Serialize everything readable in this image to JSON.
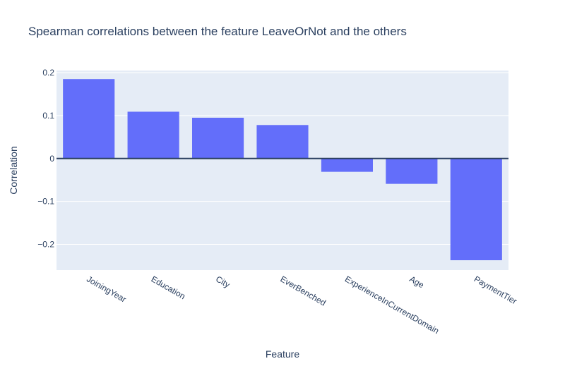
{
  "chart_data": {
    "type": "bar",
    "title": "Spearman correlations between the feature LeaveOrNot and the others",
    "xlabel": "Feature",
    "ylabel": "Correlation",
    "categories": [
      "JoiningYear",
      "Education",
      "City",
      "EverBenched",
      "ExperienceInCurrentDomain",
      "Age",
      "PaymentTier"
    ],
    "values": [
      0.185,
      0.109,
      0.095,
      0.078,
      -0.031,
      -0.059,
      -0.237
    ],
    "ylim": [
      -0.26,
      0.205
    ],
    "yticks": [
      0.2,
      0.1,
      0,
      -0.1,
      -0.2
    ],
    "ytick_labels": [
      "0.2",
      "0.1",
      "0",
      "−0.1",
      "−0.2"
    ],
    "grid": true,
    "colors": {
      "bar": "#636efa",
      "plot_background": "#e5ecf6",
      "grid": "#ffffff",
      "zero_line": "#2a3f5f",
      "text": "#2a3f5f"
    }
  }
}
